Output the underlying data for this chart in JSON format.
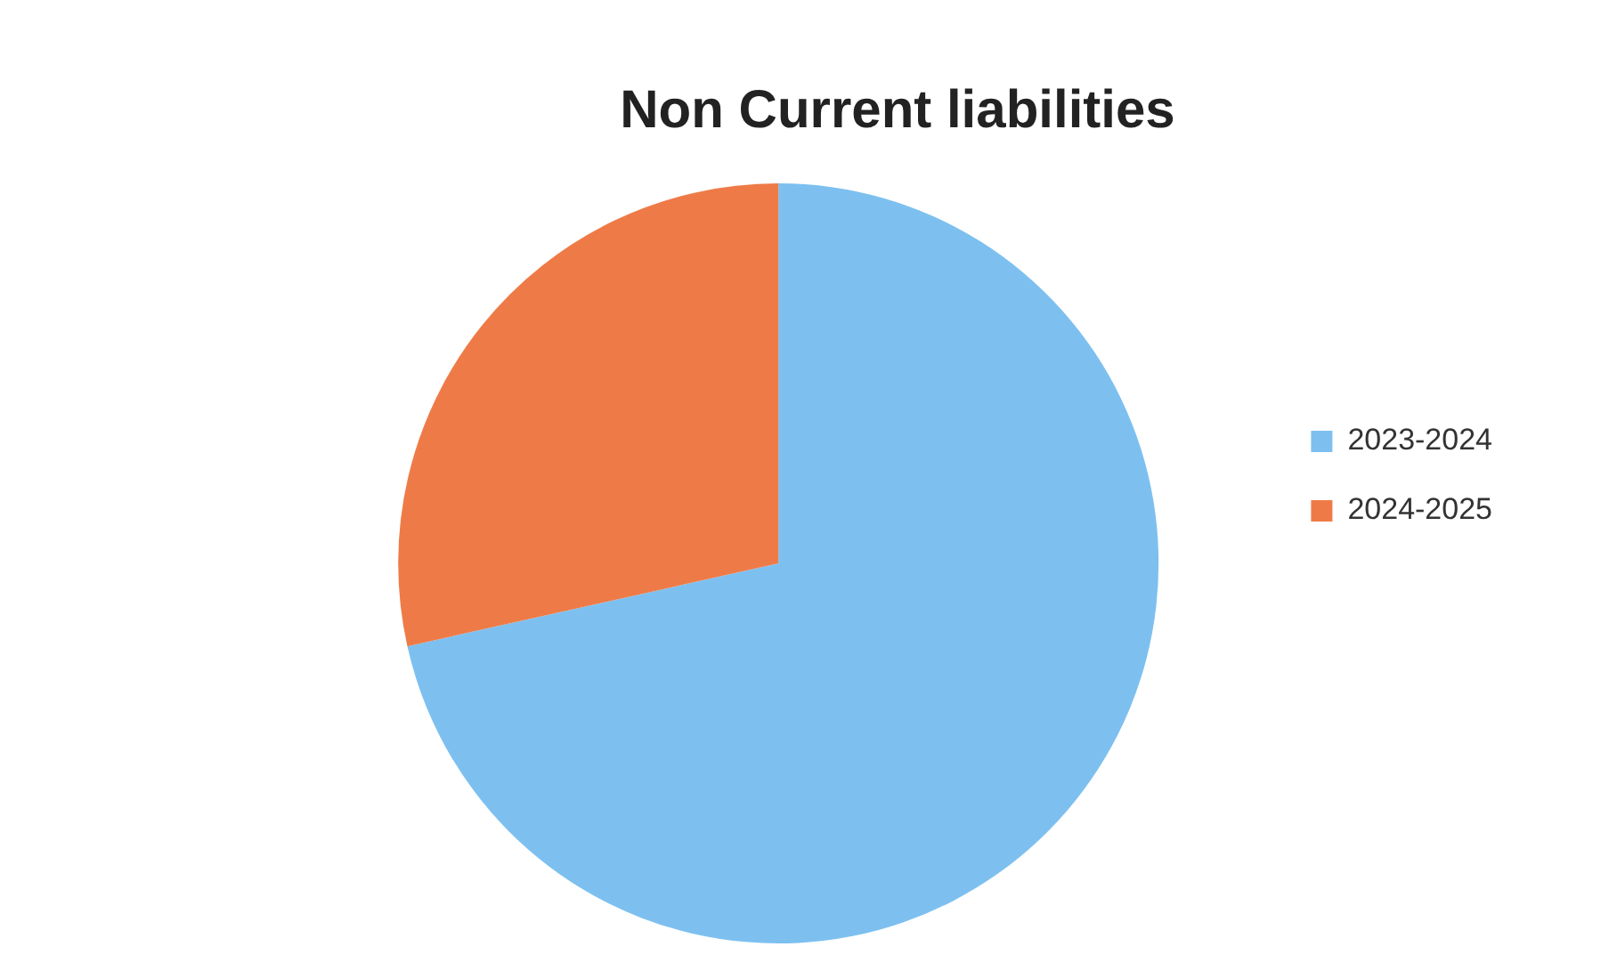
{
  "chart_data": {
    "type": "pie",
    "title": "Non Current liabilities",
    "categories": [
      "2023-2024",
      "2024-2025"
    ],
    "values": [
      71.5,
      28.5
    ],
    "colors": [
      "#7dc0f0",
      "#ee7b47"
    ],
    "legend": "right"
  }
}
